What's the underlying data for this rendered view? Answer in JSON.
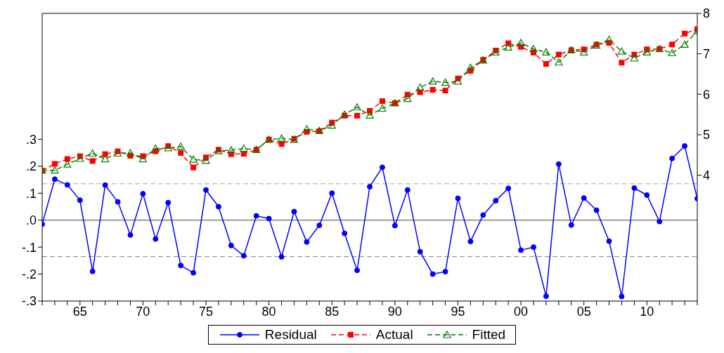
{
  "chart_data": {
    "type": "line",
    "x": [
      1962,
      1963,
      1964,
      1965,
      1966,
      1967,
      1968,
      1969,
      1970,
      1971,
      1972,
      1973,
      1974,
      1975,
      1976,
      1977,
      1978,
      1979,
      1980,
      1981,
      1982,
      1983,
      1984,
      1985,
      1986,
      1987,
      1988,
      1989,
      1990,
      1991,
      1992,
      1993,
      1994,
      1995,
      1996,
      1997,
      1998,
      1999,
      2000,
      2001,
      2002,
      2003,
      2004,
      2005,
      2006,
      2007,
      2008,
      2009,
      2010,
      2011,
      2012,
      2013,
      2014
    ],
    "series": [
      {
        "name": "Residual",
        "color": "#0000ff",
        "marker": "circle",
        "line_style": "solid",
        "axis": "y",
        "values": [
          -0.015,
          0.152,
          0.131,
          0.074,
          -0.19,
          0.13,
          0.068,
          -0.055,
          0.098,
          -0.07,
          0.065,
          -0.168,
          -0.195,
          0.112,
          0.05,
          -0.094,
          -0.132,
          0.016,
          0.006,
          -0.136,
          0.032,
          -0.081,
          -0.019,
          0.1,
          -0.049,
          -0.186,
          0.124,
          0.196,
          -0.02,
          0.112,
          -0.117,
          -0.2,
          -0.191,
          0.081,
          -0.079,
          0.019,
          0.072,
          0.118,
          -0.111,
          -0.1,
          -0.282,
          0.208,
          -0.018,
          0.082,
          0.037,
          -0.078,
          -0.283,
          0.119,
          0.093,
          -0.005,
          0.229,
          0.275,
          0.08
        ]
      },
      {
        "name": "Actual",
        "color": "#ff0000",
        "marker": "square",
        "line_style": "dashed",
        "axis": "y2",
        "values": [
          4.11,
          4.28,
          4.4,
          4.47,
          4.35,
          4.52,
          4.59,
          4.48,
          4.47,
          4.59,
          4.72,
          4.55,
          4.19,
          4.44,
          4.63,
          4.52,
          4.53,
          4.63,
          4.88,
          4.77,
          4.9,
          5.07,
          5.09,
          5.3,
          5.47,
          5.47,
          5.59,
          5.83,
          5.78,
          5.99,
          6.05,
          6.11,
          6.09,
          6.39,
          6.58,
          6.85,
          7.08,
          7.26,
          7.17,
          7.03,
          6.75,
          6.98,
          7.09,
          7.11,
          7.23,
          7.27,
          6.78,
          6.98,
          7.11,
          7.12,
          7.23,
          7.5,
          7.61
        ]
      },
      {
        "name": "Fitted",
        "color": "#008000",
        "marker": "triangle",
        "line_style": "dashed",
        "axis": "y2",
        "values": [
          4.12,
          4.12,
          4.27,
          4.41,
          4.54,
          4.4,
          4.54,
          4.55,
          4.4,
          4.66,
          4.67,
          4.71,
          4.39,
          4.36,
          4.6,
          4.62,
          4.66,
          4.63,
          4.88,
          4.91,
          4.88,
          5.14,
          5.1,
          5.23,
          5.5,
          5.68,
          5.48,
          5.65,
          5.78,
          5.89,
          6.17,
          6.32,
          6.29,
          6.32,
          6.66,
          6.84,
          7.04,
          7.16,
          7.27,
          7.12,
          7.04,
          6.79,
          7.09,
          7.04,
          7.21,
          7.35,
          7.06,
          6.89,
          7.04,
          7.12,
          7.02,
          7.23,
          7.56
        ]
      }
    ],
    "xlim": [
      1962,
      2014
    ],
    "xticks": [
      {
        "value": 1962,
        "label": null
      },
      {
        "value": 1963,
        "label": null
      },
      {
        "value": 1964,
        "label": null
      },
      {
        "value": 1965,
        "label": "65"
      },
      {
        "value": 1966,
        "label": null
      },
      {
        "value": 1967,
        "label": null
      },
      {
        "value": 1968,
        "label": null
      },
      {
        "value": 1969,
        "label": null
      },
      {
        "value": 1970,
        "label": "70"
      },
      {
        "value": 1971,
        "label": null
      },
      {
        "value": 1972,
        "label": null
      },
      {
        "value": 1973,
        "label": null
      },
      {
        "value": 1974,
        "label": null
      },
      {
        "value": 1975,
        "label": "75"
      },
      {
        "value": 1976,
        "label": null
      },
      {
        "value": 1977,
        "label": null
      },
      {
        "value": 1978,
        "label": null
      },
      {
        "value": 1979,
        "label": null
      },
      {
        "value": 1980,
        "label": "80"
      },
      {
        "value": 1981,
        "label": null
      },
      {
        "value": 1982,
        "label": null
      },
      {
        "value": 1983,
        "label": null
      },
      {
        "value": 1984,
        "label": null
      },
      {
        "value": 1985,
        "label": "85"
      },
      {
        "value": 1986,
        "label": null
      },
      {
        "value": 1987,
        "label": null
      },
      {
        "value": 1988,
        "label": null
      },
      {
        "value": 1989,
        "label": null
      },
      {
        "value": 1990,
        "label": "90"
      },
      {
        "value": 1991,
        "label": null
      },
      {
        "value": 1992,
        "label": null
      },
      {
        "value": 1993,
        "label": null
      },
      {
        "value": 1994,
        "label": null
      },
      {
        "value": 1995,
        "label": "95"
      },
      {
        "value": 1996,
        "label": null
      },
      {
        "value": 1997,
        "label": null
      },
      {
        "value": 1998,
        "label": null
      },
      {
        "value": 1999,
        "label": null
      },
      {
        "value": 2000,
        "label": "00"
      },
      {
        "value": 2001,
        "label": null
      },
      {
        "value": 2002,
        "label": null
      },
      {
        "value": 2003,
        "label": null
      },
      {
        "value": 2004,
        "label": null
      },
      {
        "value": 2005,
        "label": "05"
      },
      {
        "value": 2006,
        "label": null
      },
      {
        "value": 2007,
        "label": null
      },
      {
        "value": 2008,
        "label": null
      },
      {
        "value": 2009,
        "label": null
      },
      {
        "value": 2010,
        "label": "10"
      },
      {
        "value": 2011,
        "label": null
      },
      {
        "value": 2012,
        "label": null
      },
      {
        "value": 2013,
        "label": null
      },
      {
        "value": 2014,
        "label": null
      }
    ],
    "ylim": [
      -0.3,
      0.767
    ],
    "yticks": [
      {
        "value": -0.3,
        "label": "-.3"
      },
      {
        "value": -0.2,
        "label": "-.2"
      },
      {
        "value": -0.1,
        "label": "-.1"
      },
      {
        "value": 0,
        "label": ".0"
      },
      {
        "value": 0.1,
        "label": ".1"
      },
      {
        "value": 0.2,
        "label": ".2"
      },
      {
        "value": 0.3,
        "label": ".3"
      }
    ],
    "y2lim": [
      0.889,
      8
    ],
    "y2ticks": [
      4,
      5,
      6,
      7,
      8
    ],
    "ref_lines": [
      {
        "axis": "y",
        "value": 0,
        "color": "#404040",
        "line_style": "solid"
      },
      {
        "axis": "y",
        "value": 0.135,
        "color": "#a0a0a0",
        "line_style": "dashed"
      },
      {
        "axis": "y",
        "value": -0.135,
        "color": "#808080",
        "line_style": "dashed"
      }
    ],
    "grid": false,
    "legend": "bottom"
  }
}
